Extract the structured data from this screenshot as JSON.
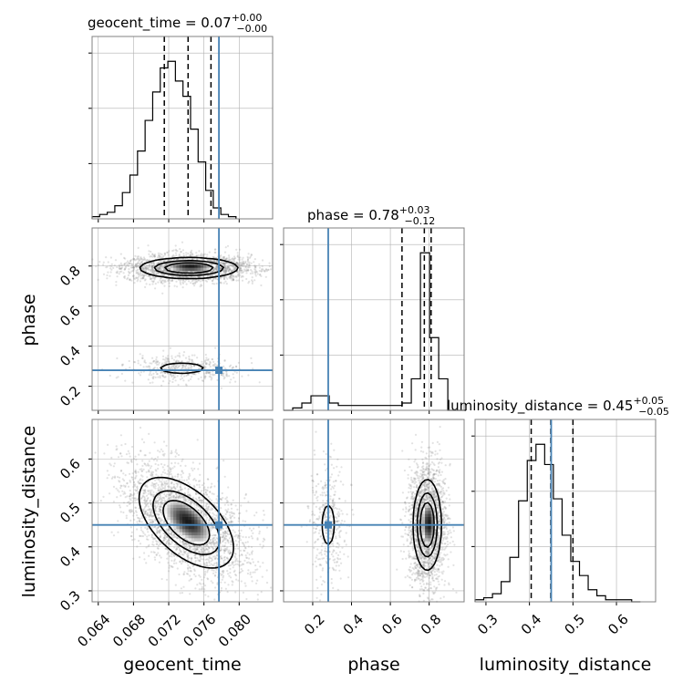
{
  "chart_data": [
    {
      "type": "histogram",
      "panel": "geocent_time marginal",
      "title": {
        "param": "geocent_time",
        "median": "0.07",
        "plus": "+0.00",
        "minus": "−0.00"
      },
      "xlim": [
        0.0633,
        0.0838
      ],
      "bin_edges_start": 0.0633,
      "bin_width": 0.00086,
      "counts": [
        1,
        2,
        3,
        6,
        12,
        20,
        31,
        45,
        58,
        69,
        72,
        63,
        56,
        41,
        26,
        13,
        5,
        2,
        1
      ],
      "quantiles": [
        0.0715,
        0.0742,
        0.0768
      ],
      "truth": 0.0777
    },
    {
      "type": "histogram",
      "panel": "phase marginal",
      "title": {
        "param": "phase",
        "median": "0.78",
        "plus": "+0.03",
        "minus": "−0.12"
      },
      "xlim": [
        0.05,
        0.98
      ],
      "bin_edges_start": 0.05,
      "bin_width": 0.047,
      "counts": [
        0,
        1,
        3,
        6,
        6,
        3,
        2,
        2,
        2,
        2,
        2,
        2,
        2,
        3,
        13,
        65,
        30,
        13,
        0,
        0
      ],
      "quantiles": [
        0.66,
        0.775,
        0.81
      ],
      "truth": 0.28
    },
    {
      "type": "histogram",
      "panel": "luminosity_distance marginal",
      "title": {
        "param": "luminosity_distance",
        "median": "0.45",
        "plus": "+0.05",
        "minus": "−0.05"
      },
      "xlim": [
        0.275,
        0.69
      ],
      "bin_edges_start": 0.275,
      "bin_width": 0.02,
      "counts": [
        1,
        2,
        4,
        10,
        22,
        50,
        70,
        78,
        68,
        51,
        33,
        20,
        13,
        6,
        3,
        1,
        1,
        1,
        0
      ],
      "quantiles": [
        0.404,
        0.449,
        0.5
      ],
      "truth": 0.45
    },
    {
      "type": "contour",
      "panel": "phase vs geocent_time",
      "x_param": "geocent_time",
      "y_param": "phase",
      "xlim": [
        0.0633,
        0.0838
      ],
      "ylim": [
        0.08,
        0.99
      ],
      "modes": [
        {
          "x": 0.0743,
          "y": 0.79,
          "sx": 0.0027,
          "sy": 0.025,
          "weight": 0.85,
          "rho": 0.0
        },
        {
          "x": 0.0735,
          "y": 0.29,
          "sx": 0.0024,
          "sy": 0.025,
          "weight": 0.15,
          "rho": 0.0
        }
      ],
      "truth": {
        "x": 0.0777,
        "y": 0.28
      }
    },
    {
      "type": "contour",
      "panel": "luminosity_distance vs geocent_time",
      "x_param": "geocent_time",
      "y_param": "luminosity_distance",
      "xlim": [
        0.0633,
        0.0838
      ],
      "ylim": [
        0.275,
        0.69
      ],
      "modes": [
        {
          "x": 0.074,
          "y": 0.455,
          "sx": 0.0026,
          "sy": 0.05,
          "weight": 1.0,
          "rho": -0.55
        }
      ],
      "truth": {
        "x": 0.0777,
        "y": 0.45
      }
    },
    {
      "type": "contour",
      "panel": "luminosity_distance vs phase",
      "x_param": "phase",
      "y_param": "luminosity_distance",
      "xlim": [
        0.05,
        0.98
      ],
      "ylim": [
        0.275,
        0.69
      ],
      "modes": [
        {
          "x": 0.79,
          "y": 0.45,
          "sx": 0.035,
          "sy": 0.05,
          "weight": 0.85,
          "rho": 0.0
        },
        {
          "x": 0.28,
          "y": 0.45,
          "sx": 0.035,
          "sy": 0.05,
          "weight": 0.15,
          "rho": 0.0
        }
      ],
      "truth": {
        "x": 0.28,
        "y": 0.45
      }
    }
  ],
  "axes": {
    "geocent_time": {
      "label": "geocent_time",
      "ticks": [
        "0.064",
        "0.068",
        "0.072",
        "0.076",
        "0.080"
      ]
    },
    "phase": {
      "label": "phase",
      "ticks": [
        "0.2",
        "0.4",
        "0.6",
        "0.8"
      ]
    },
    "luminosity_distance": {
      "label": "luminosity_distance",
      "ticks": [
        "0.3",
        "0.4",
        "0.5",
        "0.6"
      ]
    }
  },
  "colors": {
    "truth": "#4682b4",
    "hist": "#000000",
    "grid": "#b0b0b0",
    "scatter": "#8c8c8c",
    "contour": "#000000"
  }
}
